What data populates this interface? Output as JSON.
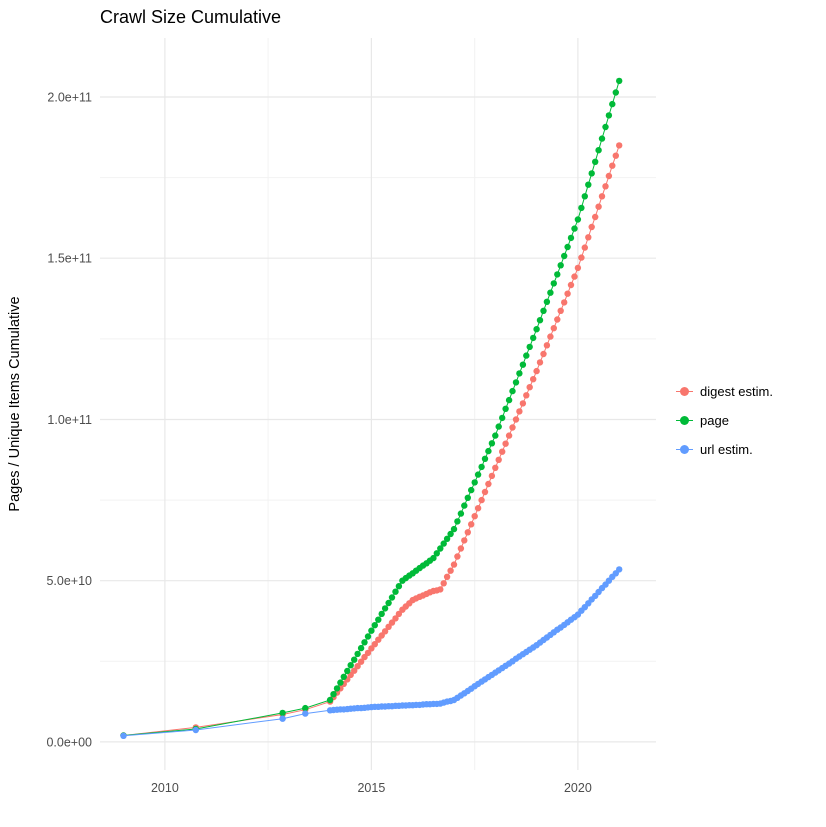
{
  "chart_data": {
    "type": "line",
    "title": "Crawl Size Cumulative",
    "xlabel": "",
    "ylabel": "Pages / Unique Items Cumulative",
    "y_unit_note": "values_e9 are in units of 1e9 (billions); axis shown in scientific notation",
    "background": "#FFFFFF",
    "grid": {
      "show": true,
      "major_color": "#E8E8E8",
      "minor_color": "#F2F2F2"
    },
    "xlim": [
      2008.43,
      2021.89
    ],
    "ylim_e9": [
      -8.7,
      218.3
    ],
    "xticks": {
      "major": [
        2010,
        2015,
        2020
      ],
      "minor": [
        2012.5,
        2017.5
      ],
      "labels": [
        "2010",
        "2015",
        "2020"
      ]
    },
    "yticks": {
      "major_e9": [
        0,
        50,
        100,
        150,
        200
      ],
      "minor_e9": [
        25,
        75,
        125,
        175
      ],
      "labels": [
        "0.0e+00",
        "5.0e+10",
        "1.0e+11",
        "1.5e+11",
        "2.0e+11"
      ]
    },
    "legend": {
      "position": "right",
      "items": [
        "digest estim.",
        "page",
        "url estim."
      ]
    },
    "x": [
      2009.0,
      2010.75,
      2012.85,
      2013.4,
      2014.0,
      2014.083,
      2014.167,
      2014.25,
      2014.333,
      2014.417,
      2014.5,
      2014.583,
      2014.667,
      2014.75,
      2014.833,
      2014.917,
      2015.0,
      2015.083,
      2015.167,
      2015.25,
      2015.333,
      2015.417,
      2015.5,
      2015.583,
      2015.667,
      2015.75,
      2015.833,
      2015.917,
      2016.0,
      2016.083,
      2016.167,
      2016.25,
      2016.333,
      2016.417,
      2016.5,
      2016.583,
      2016.667,
      2016.75,
      2016.833,
      2016.917,
      2017.0,
      2017.083,
      2017.167,
      2017.25,
      2017.333,
      2017.417,
      2017.5,
      2017.583,
      2017.667,
      2017.75,
      2017.833,
      2017.917,
      2018.0,
      2018.083,
      2018.167,
      2018.25,
      2018.333,
      2018.417,
      2018.5,
      2018.583,
      2018.667,
      2018.75,
      2018.833,
      2018.917,
      2019.0,
      2019.083,
      2019.167,
      2019.25,
      2019.333,
      2019.417,
      2019.5,
      2019.583,
      2019.667,
      2019.75,
      2019.833,
      2019.917,
      2020.0,
      2020.083,
      2020.167,
      2020.25,
      2020.333,
      2020.417,
      2020.5,
      2020.583,
      2020.667,
      2020.75,
      2020.833,
      2020.917,
      2021.0
    ],
    "series": [
      {
        "name": "digest estim.",
        "color": "#F8766D",
        "values_e9": [
          2.0,
          4.5,
          8.5,
          10.0,
          12.5,
          13.9,
          15.3,
          16.6,
          18.0,
          19.4,
          20.8,
          22.1,
          23.5,
          24.9,
          26.3,
          27.6,
          29.0,
          30.3,
          31.7,
          33.0,
          34.3,
          35.7,
          37.0,
          38.3,
          39.7,
          41.0,
          42.0,
          43.0,
          44.0,
          44.5,
          45.0,
          45.4,
          45.9,
          46.4,
          46.8,
          47.0,
          47.3,
          49.2,
          51.2,
          53.1,
          55.0,
          57.5,
          60.0,
          62.5,
          65.0,
          67.5,
          70.0,
          72.5,
          75.0,
          77.5,
          80.0,
          82.5,
          85.0,
          87.5,
          90.0,
          92.5,
          95.0,
          97.5,
          100.0,
          102.5,
          105.0,
          107.5,
          110.0,
          112.5,
          115.0,
          117.7,
          120.3,
          123.0,
          125.7,
          128.3,
          131.0,
          133.7,
          136.3,
          139.0,
          141.7,
          144.3,
          147.0,
          150.2,
          153.3,
          156.5,
          159.7,
          162.8,
          166.0,
          169.2,
          172.3,
          175.5,
          178.7,
          181.8,
          185.0
        ]
      },
      {
        "name": "page",
        "color": "#00BA38",
        "values_e9": [
          2.0,
          4.0,
          9.0,
          10.5,
          13.0,
          14.8,
          16.6,
          18.4,
          20.2,
          22.0,
          23.8,
          25.5,
          27.3,
          29.1,
          30.9,
          32.7,
          34.5,
          36.2,
          37.9,
          39.7,
          41.4,
          43.1,
          44.8,
          46.6,
          48.3,
          50.0,
          50.8,
          51.6,
          52.3,
          53.1,
          53.9,
          54.7,
          55.4,
          56.2,
          57.0,
          58.5,
          60.0,
          61.5,
          63.0,
          64.5,
          66.0,
          68.4,
          70.8,
          73.3,
          75.7,
          78.1,
          80.5,
          82.9,
          85.3,
          87.8,
          90.2,
          92.6,
          95.0,
          97.8,
          100.5,
          103.3,
          106.0,
          108.8,
          111.5,
          114.3,
          117.0,
          119.8,
          122.5,
          125.3,
          128.0,
          130.8,
          133.7,
          136.5,
          139.3,
          142.2,
          145.0,
          147.8,
          150.7,
          153.5,
          156.3,
          159.2,
          162.0,
          165.6,
          169.2,
          172.8,
          176.3,
          179.9,
          183.5,
          187.1,
          190.7,
          194.3,
          197.8,
          201.4,
          205.0
        ]
      },
      {
        "name": "url estim.",
        "color": "#619CFF",
        "values_e9": [
          1.9,
          3.7,
          7.2,
          8.8,
          9.8,
          9.9,
          10.0,
          10.1,
          10.1,
          10.2,
          10.3,
          10.4,
          10.5,
          10.5,
          10.6,
          10.7,
          10.8,
          10.9,
          10.9,
          11.0,
          11.0,
          11.1,
          11.1,
          11.2,
          11.2,
          11.3,
          11.3,
          11.4,
          11.4,
          11.5,
          11.5,
          11.6,
          11.7,
          11.7,
          11.8,
          11.8,
          11.9,
          12.2,
          12.5,
          12.7,
          13.0,
          13.7,
          14.4,
          15.1,
          15.8,
          16.5,
          17.3,
          18.0,
          18.7,
          19.4,
          20.1,
          20.8,
          21.5,
          22.2,
          22.9,
          23.6,
          24.3,
          25.0,
          25.8,
          26.5,
          27.2,
          27.9,
          28.6,
          29.3,
          30.0,
          30.8,
          31.6,
          32.4,
          33.2,
          34.0,
          34.8,
          35.5,
          36.3,
          37.1,
          37.9,
          38.7,
          39.5,
          40.7,
          41.8,
          43.0,
          44.2,
          45.3,
          46.5,
          47.7,
          48.8,
          50.0,
          51.2,
          52.3,
          53.5
        ]
      }
    ]
  }
}
